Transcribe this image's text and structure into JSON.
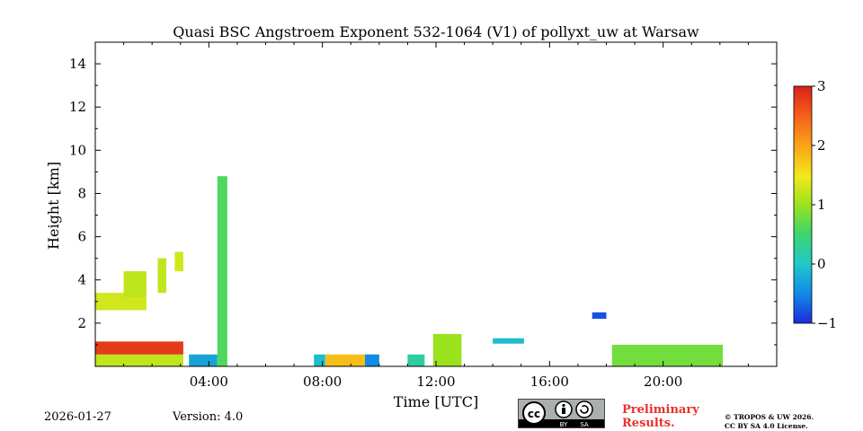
{
  "chart_data": {
    "type": "heatmap",
    "title": "Quasi BSC Angstroem Exponent 532-1064 (V1) of pollyxt_uw at Warsaw",
    "xlabel": "Time [UTC]",
    "ylabel": "Height [km]",
    "x_range_hours": [
      0,
      24
    ],
    "ylim": [
      0,
      15
    ],
    "x_ticks": [
      {
        "value": 4,
        "label": "04:00"
      },
      {
        "value": 8,
        "label": "08:00"
      },
      {
        "value": 12,
        "label": "12:00"
      },
      {
        "value": 16,
        "label": "16:00"
      },
      {
        "value": 20,
        "label": "20:00"
      }
    ],
    "y_ticks": [
      {
        "value": 2,
        "label": "2"
      },
      {
        "value": 4,
        "label": "4"
      },
      {
        "value": 6,
        "label": "6"
      },
      {
        "value": 8,
        "label": "8"
      },
      {
        "value": 10,
        "label": "10"
      },
      {
        "value": 12,
        "label": "12"
      },
      {
        "value": 14,
        "label": "14"
      }
    ],
    "colorbar": {
      "range": [
        -1,
        3
      ],
      "ticks": [
        {
          "value": 3,
          "label": "3"
        },
        {
          "value": 2,
          "label": "2"
        },
        {
          "value": 1,
          "label": "1"
        },
        {
          "value": 0,
          "label": "0"
        },
        {
          "value": -1,
          "label": "−1"
        }
      ],
      "colormap": "jet"
    },
    "regions": [
      {
        "name": "low-layer-0-3h-base",
        "t0": 0.0,
        "t1": 3.1,
        "h0": 0.0,
        "h1": 0.55,
        "value": 1.2
      },
      {
        "name": "low-layer-0-3h-mid",
        "t0": 0.0,
        "t1": 3.1,
        "h0": 0.55,
        "h1": 1.15,
        "value": 2.8
      },
      {
        "name": "mid-layer-2-3km",
        "t0": 0.0,
        "t1": 1.8,
        "h0": 2.6,
        "h1": 3.4,
        "value": 1.3
      },
      {
        "name": "mid-layer-3-4km",
        "t0": 1.0,
        "t1": 1.8,
        "h0": 3.2,
        "h1": 4.4,
        "value": 1.2
      },
      {
        "name": "plume-2.3h",
        "t0": 2.2,
        "t1": 2.5,
        "h0": 3.4,
        "h1": 5.0,
        "value": 1.2
      },
      {
        "name": "plume-3h",
        "t0": 2.8,
        "t1": 3.1,
        "h0": 4.4,
        "h1": 5.3,
        "value": 1.3
      },
      {
        "name": "blue-base-3.3-4.5h",
        "t0": 3.3,
        "t1": 4.3,
        "h0": 0.0,
        "h1": 0.55,
        "value": -0.3
      },
      {
        "name": "column-4.5h",
        "t0": 4.3,
        "t1": 4.65,
        "h0": 0.0,
        "h1": 8.8,
        "value": 0.6
      },
      {
        "name": "patch-8h",
        "t0": 7.7,
        "t1": 8.1,
        "h0": 0.0,
        "h1": 0.55,
        "value": -0.1
      },
      {
        "name": "base-8-10h",
        "t0": 8.1,
        "t1": 10.0,
        "h0": 0.0,
        "h1": 0.55,
        "value": 1.8
      },
      {
        "name": "patch-9.8h",
        "t0": 9.5,
        "t1": 10.0,
        "h0": 0.0,
        "h1": 0.55,
        "value": -0.5
      },
      {
        "name": "patch-11.5h",
        "t0": 11.0,
        "t1": 11.6,
        "h0": 0.0,
        "h1": 0.55,
        "value": 0.2
      },
      {
        "name": "column-12.5h",
        "t0": 11.9,
        "t1": 12.9,
        "h0": 0.0,
        "h1": 1.5,
        "value": 1.0
      },
      {
        "name": "streak-14.5h",
        "t0": 14.0,
        "t1": 15.1,
        "h0": 1.05,
        "h1": 1.3,
        "value": -0.1
      },
      {
        "name": "patch-17.8h",
        "t0": 17.5,
        "t1": 18.0,
        "h0": 2.2,
        "h1": 2.5,
        "value": -0.8
      },
      {
        "name": "layer-18-22h",
        "t0": 18.2,
        "t1": 22.1,
        "h0": 0.0,
        "h1": 1.0,
        "value": 0.8
      }
    ]
  },
  "footer": {
    "date": "2026-01-27",
    "version": "Version: 4.0",
    "preliminary_line1": "Preliminary",
    "preliminary_line2": "Results.",
    "license_line1": "© TROPOS & UW 2026.",
    "license_line2": "CC BY SA 4.0 License.",
    "badge_by": "BY",
    "badge_sa": "SA"
  }
}
